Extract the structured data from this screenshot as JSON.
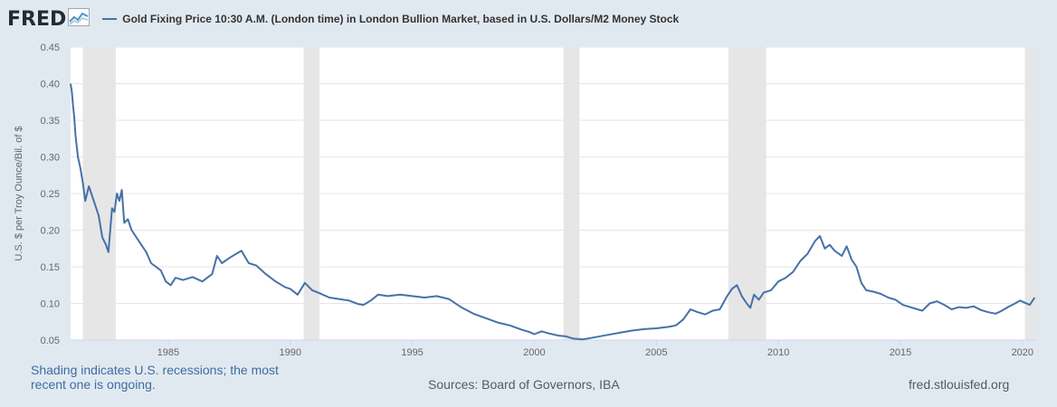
{
  "header": {
    "logo_text": "FRED",
    "logo_icon": "fred-chart-icon",
    "series_title": "Gold Fixing Price 10:30 A.M. (London time) in London Bullion Market, based in U.S. Dollars/M2 Money Stock"
  },
  "footer": {
    "recession_note": "Shading indicates U.S. recessions; the most recent one is ongoing.",
    "sources": "Sources: Board of Governors, IBA",
    "site": "fred.stlouisfed.org"
  },
  "chart_data": {
    "type": "line",
    "title": "Gold Fixing Price 10:30 A.M. (London time) in London Bullion Market, based in U.S. Dollars/M2 Money Stock",
    "xlabel": "",
    "ylabel": "U.S. $ per Troy Ounce/Bil. of $",
    "xlim": [
      1981.0,
      2020.6
    ],
    "ylim": [
      0.05,
      0.45
    ],
    "x_ticks": [
      "1985",
      "1990",
      "1995",
      "2000",
      "2005",
      "2010",
      "2015",
      "2020"
    ],
    "y_ticks": [
      "0.05",
      "0.10",
      "0.15",
      "0.20",
      "0.25",
      "0.30",
      "0.35",
      "0.40",
      "0.45"
    ],
    "grid": true,
    "legend": "top",
    "line_color": "#4572a7",
    "recession_color": "#e6e6e6",
    "recessions": [
      [
        1981.5,
        1982.85
      ],
      [
        1990.55,
        1991.2
      ],
      [
        2001.2,
        2001.85
      ],
      [
        2007.95,
        2009.5
      ],
      [
        2020.1,
        2020.6
      ]
    ],
    "series": [
      {
        "name": "Gold Fixing Price 10:30 A.M. (London time) in London Bullion Market, based in U.S. Dollars/M2 Money Stock",
        "x": [
          1981.0,
          1981.05,
          1981.1,
          1981.15,
          1981.2,
          1981.3,
          1981.4,
          1981.5,
          1981.6,
          1981.75,
          1981.9,
          1982.0,
          1982.15,
          1982.3,
          1982.45,
          1982.55,
          1982.7,
          1982.8,
          1982.9,
          1983.0,
          1983.1,
          1983.2,
          1983.35,
          1983.5,
          1983.7,
          1983.9,
          1984.1,
          1984.3,
          1984.5,
          1984.7,
          1984.9,
          1985.1,
          1985.3,
          1985.6,
          1986.0,
          1986.4,
          1986.8,
          1987.0,
          1987.2,
          1987.5,
          1987.8,
          1988.0,
          1988.3,
          1988.6,
          1989.0,
          1989.4,
          1989.8,
          1990.0,
          1990.3,
          1990.6,
          1990.9,
          1991.2,
          1991.6,
          1992.0,
          1992.4,
          1992.8,
          1993.0,
          1993.3,
          1993.6,
          1994.0,
          1994.5,
          1995.0,
          1995.5,
          1996.0,
          1996.5,
          1997.0,
          1997.5,
          1998.0,
          1998.5,
          1999.0,
          1999.5,
          1999.8,
          2000.0,
          2000.3,
          2000.6,
          2001.0,
          2001.3,
          2001.6,
          2002.0,
          2002.5,
          2003.0,
          2003.5,
          2004.0,
          2004.5,
          2005.0,
          2005.5,
          2005.8,
          2006.1,
          2006.4,
          2006.7,
          2007.0,
          2007.3,
          2007.6,
          2007.9,
          2008.1,
          2008.3,
          2008.5,
          2008.7,
          2008.85,
          2009.0,
          2009.2,
          2009.4,
          2009.7,
          2010.0,
          2010.3,
          2010.6,
          2010.9,
          2011.2,
          2011.5,
          2011.7,
          2011.9,
          2012.1,
          2012.3,
          2012.6,
          2012.8,
          2013.0,
          2013.2,
          2013.4,
          2013.6,
          2013.9,
          2014.2,
          2014.5,
          2014.8,
          2015.1,
          2015.4,
          2015.7,
          2015.9,
          2016.2,
          2016.5,
          2016.8,
          2017.1,
          2017.4,
          2017.7,
          2018.0,
          2018.3,
          2018.6,
          2018.9,
          2019.1,
          2019.4,
          2019.7,
          2019.9,
          2020.1,
          2020.3,
          2020.5
        ],
        "values": [
          0.4,
          0.39,
          0.37,
          0.355,
          0.33,
          0.3,
          0.285,
          0.265,
          0.24,
          0.26,
          0.245,
          0.235,
          0.22,
          0.19,
          0.18,
          0.17,
          0.23,
          0.225,
          0.25,
          0.24,
          0.255,
          0.21,
          0.215,
          0.2,
          0.19,
          0.18,
          0.17,
          0.155,
          0.15,
          0.145,
          0.13,
          0.125,
          0.135,
          0.132,
          0.136,
          0.13,
          0.14,
          0.165,
          0.155,
          0.162,
          0.168,
          0.172,
          0.155,
          0.152,
          0.14,
          0.13,
          0.122,
          0.12,
          0.112,
          0.128,
          0.118,
          0.114,
          0.108,
          0.106,
          0.104,
          0.099,
          0.098,
          0.104,
          0.112,
          0.11,
          0.112,
          0.11,
          0.108,
          0.11,
          0.106,
          0.095,
          0.086,
          0.08,
          0.074,
          0.07,
          0.064,
          0.061,
          0.058,
          0.062,
          0.059,
          0.056,
          0.055,
          0.052,
          0.051,
          0.054,
          0.057,
          0.06,
          0.063,
          0.065,
          0.066,
          0.068,
          0.07,
          0.078,
          0.092,
          0.088,
          0.085,
          0.09,
          0.092,
          0.11,
          0.12,
          0.125,
          0.11,
          0.1,
          0.094,
          0.112,
          0.105,
          0.115,
          0.118,
          0.13,
          0.135,
          0.143,
          0.158,
          0.168,
          0.185,
          0.192,
          0.175,
          0.18,
          0.172,
          0.165,
          0.178,
          0.16,
          0.15,
          0.128,
          0.118,
          0.116,
          0.113,
          0.108,
          0.105,
          0.098,
          0.095,
          0.092,
          0.09,
          0.1,
          0.103,
          0.098,
          0.092,
          0.095,
          0.094,
          0.096,
          0.091,
          0.088,
          0.086,
          0.089,
          0.095,
          0.1,
          0.104,
          0.101,
          0.098,
          0.108
        ]
      }
    ]
  }
}
